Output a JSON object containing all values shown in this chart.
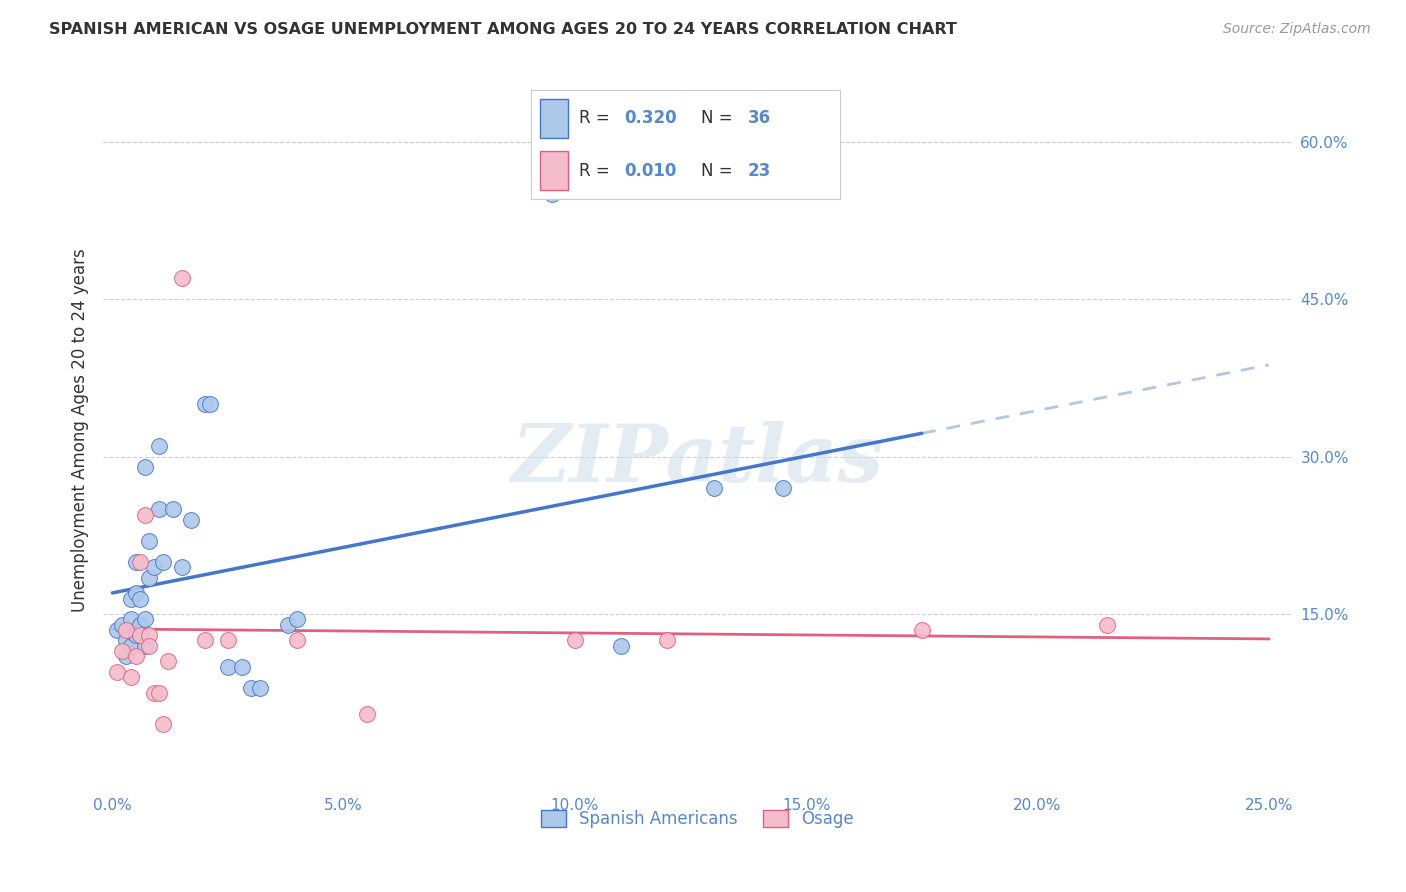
{
  "title": "SPANISH AMERICAN VS OSAGE UNEMPLOYMENT AMONG AGES 20 TO 24 YEARS CORRELATION CHART",
  "source": "Source: ZipAtlas.com",
  "ylabel": "Unemployment Among Ages 20 to 24 years",
  "xlabel_ticks": [
    "0.0%",
    "5.0%",
    "10.0%",
    "15.0%",
    "20.0%",
    "25.0%"
  ],
  "xlabel_vals": [
    0.0,
    0.05,
    0.1,
    0.15,
    0.2,
    0.25
  ],
  "ylabel_ticks_right": [
    "60.0%",
    "45.0%",
    "30.0%",
    "15.0%"
  ],
  "ylabel_vals_right": [
    0.6,
    0.45,
    0.3,
    0.15
  ],
  "xlim": [
    -0.002,
    0.255
  ],
  "ylim": [
    -0.02,
    0.67
  ],
  "spanish_R": 0.32,
  "spanish_N": 36,
  "osage_R": 0.01,
  "osage_N": 23,
  "spanish_color": "#adc8e8",
  "osage_color": "#f5bccb",
  "regression_blue": "#4477cc",
  "regression_pink": "#e06080",
  "regression_dashed_color": "#b0c8e0",
  "watermark": "ZIPatlas",
  "legend_box_color": "#f8f8f8",
  "legend_border_color": "#cccccc",
  "spanish_x": [
    0.001,
    0.002,
    0.003,
    0.003,
    0.004,
    0.004,
    0.004,
    0.005,
    0.005,
    0.005,
    0.006,
    0.006,
    0.007,
    0.007,
    0.007,
    0.008,
    0.008,
    0.009,
    0.01,
    0.01,
    0.011,
    0.013,
    0.015,
    0.017,
    0.02,
    0.021,
    0.025,
    0.028,
    0.03,
    0.032,
    0.038,
    0.04,
    0.095,
    0.11,
    0.13,
    0.145
  ],
  "spanish_y": [
    0.135,
    0.14,
    0.11,
    0.125,
    0.12,
    0.145,
    0.165,
    0.13,
    0.17,
    0.2,
    0.14,
    0.165,
    0.12,
    0.145,
    0.29,
    0.185,
    0.22,
    0.195,
    0.25,
    0.31,
    0.2,
    0.25,
    0.195,
    0.24,
    0.35,
    0.35,
    0.1,
    0.1,
    0.08,
    0.08,
    0.14,
    0.145,
    0.55,
    0.12,
    0.27,
    0.27
  ],
  "osage_x": [
    0.001,
    0.002,
    0.003,
    0.004,
    0.005,
    0.006,
    0.006,
    0.007,
    0.008,
    0.008,
    0.009,
    0.01,
    0.011,
    0.012,
    0.015,
    0.02,
    0.025,
    0.04,
    0.055,
    0.1,
    0.12,
    0.175,
    0.215
  ],
  "osage_y": [
    0.095,
    0.115,
    0.135,
    0.09,
    0.11,
    0.13,
    0.2,
    0.245,
    0.13,
    0.12,
    0.075,
    0.075,
    0.045,
    0.105,
    0.47,
    0.125,
    0.125,
    0.125,
    0.055,
    0.125,
    0.125,
    0.135,
    0.14
  ],
  "grid_color": "#d0d0d0",
  "tick_color": "#5588cc",
  "title_color": "#333333",
  "source_color": "#999999"
}
